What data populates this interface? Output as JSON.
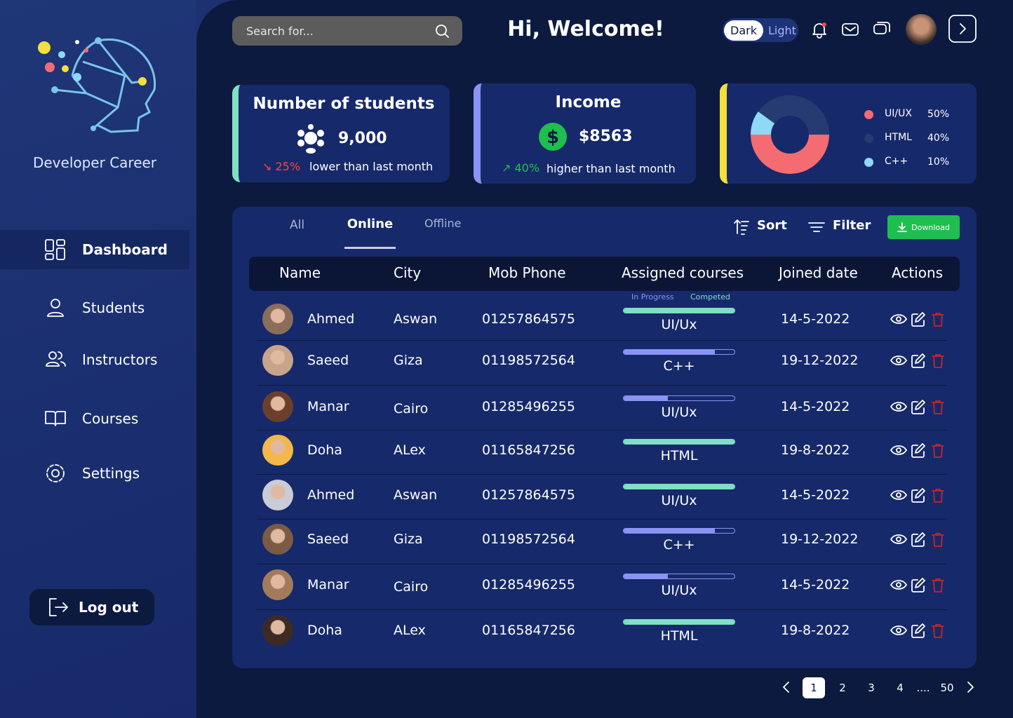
{
  "sidebar": {
    "brand": "Developer Career",
    "nav": [
      "Dashboard",
      "Students",
      "Instructors",
      "Courses",
      "Settings"
    ],
    "logout": "Log out"
  },
  "header": {
    "search_placeholder": "Search for...",
    "greeting": "Hi, Welcome!",
    "theme": [
      "Dark",
      "Light"
    ]
  },
  "cards": {
    "students": {
      "title": "Number of students",
      "value": "9,000",
      "change": "25%",
      "note": "lower than last month"
    },
    "income": {
      "title": "Income",
      "value": "$8563",
      "change": "40%",
      "note": "higher than last month"
    }
  },
  "course_chart": {
    "type": "pie",
    "categories": [
      "UI/UX",
      "HTML",
      "C++"
    ],
    "values": [
      50,
      40,
      10
    ],
    "value_labels": [
      "50%",
      "40%",
      "10%"
    ],
    "colors": [
      "#f46b72",
      "#263b72",
      "#8fd9f6"
    ]
  },
  "tabs": [
    "All",
    "Online",
    "Offline"
  ],
  "toolbar": {
    "sort": "Sort",
    "filter": "Filter",
    "download": "Download"
  },
  "table": {
    "columns": [
      "Name",
      "City",
      "Mob Phone",
      "Assigned courses",
      "Joined date",
      "Actions"
    ],
    "legend": [
      "In Progress",
      "Competed"
    ],
    "rows": [
      [
        "Ahmed",
        "Aswan",
        "01257864575",
        "UI/Ux",
        "14-5-2022"
      ],
      [
        "Saeed",
        "Giza",
        "01198572564",
        "C++",
        "19-12-2022"
      ],
      [
        "Manar",
        "Cairo",
        "01285496255",
        "UI/Ux",
        "14-5-2022"
      ],
      [
        "Doha",
        "ALex",
        "01165847256",
        "HTML",
        "19-8-2022"
      ],
      [
        "Ahmed",
        "Aswan",
        "01257864575",
        "UI/Ux",
        "14-5-2022"
      ],
      [
        "Saeed",
        "Giza",
        "01198572564",
        "C++",
        "19-12-2022"
      ],
      [
        "Manar",
        "Cairo",
        "01285496255",
        "UI/Ux",
        "14-5-2022"
      ],
      [
        "Doha",
        "ALex",
        "01165847256",
        "HTML",
        "19-8-2022"
      ]
    ],
    "progress": [
      100,
      82,
      40,
      100,
      100,
      82,
      40,
      100
    ]
  },
  "pagination": [
    "1",
    "2",
    "3",
    "4",
    "....",
    "50"
  ]
}
